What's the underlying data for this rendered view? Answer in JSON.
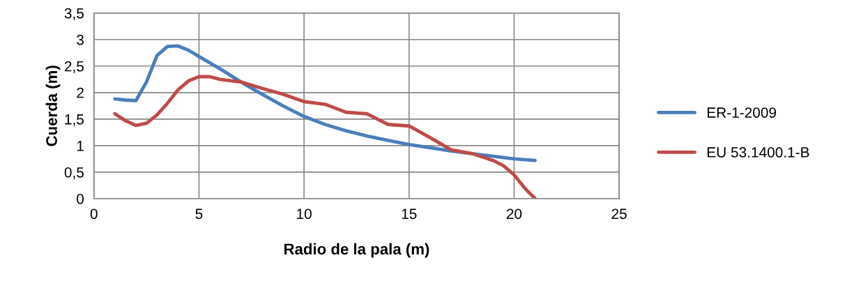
{
  "chart_data": {
    "type": "line",
    "xlabel": "Radio de la pala (m)",
    "ylabel": "Cuerda (m)",
    "xlim": [
      0,
      25
    ],
    "xticks": [
      0,
      5,
      10,
      15,
      20,
      25
    ],
    "ylim": [
      0,
      3.5
    ],
    "yticks": [
      0,
      {
        "value": 0.5,
        "label": "0,5"
      },
      1,
      {
        "value": 1.5,
        "label": "1,5"
      },
      2,
      {
        "value": 2.5,
        "label": "2,5"
      },
      3,
      {
        "value": 3.5,
        "label": "3,5"
      }
    ],
    "grid": true,
    "legend": "right",
    "marker": "none",
    "series": [
      {
        "name": "ER-1-2009",
        "color": "#4a7ebb",
        "x": [
          1,
          1.5,
          2,
          2.5,
          3,
          3.5,
          4,
          4.5,
          5,
          6,
          7,
          8,
          9,
          10,
          11,
          12,
          13,
          14,
          15,
          16,
          17,
          18,
          19,
          20,
          21
        ],
        "values": [
          1.88,
          1.86,
          1.85,
          2.2,
          2.7,
          2.87,
          2.88,
          2.8,
          2.68,
          2.45,
          2.2,
          1.97,
          1.75,
          1.55,
          1.4,
          1.28,
          1.18,
          1.1,
          1.02,
          0.96,
          0.9,
          0.85,
          0.8,
          0.75,
          0.72
        ]
      },
      {
        "name": "EU 53.1400.1-B",
        "color": "#be4b48",
        "x": [
          1,
          1.5,
          2,
          2.5,
          3,
          3.5,
          4,
          4.5,
          5,
          5.5,
          6,
          7,
          8,
          9,
          10,
          11,
          12,
          13,
          13.5,
          14,
          15,
          16,
          17,
          18,
          19,
          19.5,
          20,
          20.5,
          21
        ],
        "values": [
          1.6,
          1.47,
          1.38,
          1.42,
          1.58,
          1.8,
          2.05,
          2.22,
          2.3,
          2.3,
          2.25,
          2.2,
          2.08,
          1.97,
          1.83,
          1.78,
          1.63,
          1.6,
          1.5,
          1.4,
          1.37,
          1.15,
          0.92,
          0.85,
          0.72,
          0.62,
          0.45,
          0.2,
          0
        ]
      }
    ]
  }
}
